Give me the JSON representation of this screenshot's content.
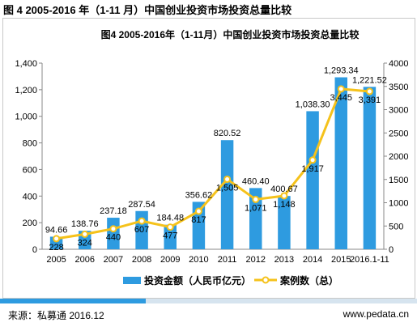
{
  "page_title": "图 4 2005-2016 年（1-11 月）中国创业投资市场投资总量比较",
  "source": "来源：私募通 2016.12",
  "website": "www.pedata.cn",
  "colors": {
    "bar": "#2e9be0",
    "line": "#f5c21b",
    "marker_fill": "#ffffff",
    "footer_dark": "#2e9be0",
    "footer_light": "#d6e4ef"
  },
  "chart_data": {
    "type": "bar+line",
    "title": "图4 2005-2016年（1-11月）中国创业投资市场投资总量比较",
    "categories": [
      "2005",
      "2006",
      "2007",
      "2008",
      "2009",
      "2010",
      "2011",
      "2012",
      "2013",
      "2014",
      "2015",
      "2016.1-11"
    ],
    "series": [
      {
        "name": "投资金额（人民币亿元）",
        "type": "bar",
        "axis": "left",
        "values": [
          94.66,
          138.76,
          237.18,
          287.54,
          184.48,
          356.62,
          820.52,
          460.4,
          400.67,
          1038.3,
          1293.34,
          1221.52
        ],
        "labels": [
          "94.66",
          "138.76",
          "237.18",
          "287.54",
          "184.48",
          "356.62",
          "820.52",
          "460.40",
          "400.67",
          "1,038.30",
          "1,293.34",
          "1,221.52"
        ]
      },
      {
        "name": "案例数（总）",
        "type": "line",
        "axis": "right",
        "values": [
          228,
          324,
          440,
          607,
          477,
          817,
          1505,
          1071,
          1148,
          1917,
          3445,
          3391
        ],
        "labels": [
          "228",
          "324",
          "440",
          "607",
          "477",
          "817",
          "1,505",
          "1,071",
          "1,148",
          "1,917",
          "3,445",
          "3,391"
        ]
      }
    ],
    "y_left": {
      "min": 0,
      "max": 1400,
      "ticks": [
        "0",
        "200",
        "400",
        "600",
        "800",
        "1,000",
        "1,200",
        "1,400"
      ]
    },
    "y_right": {
      "min": 0,
      "max": 4000,
      "ticks": [
        "0",
        "500",
        "1000",
        "1500",
        "2000",
        "2500",
        "3000",
        "3500",
        "4000"
      ]
    },
    "grid": false,
    "legend_position": "bottom"
  }
}
